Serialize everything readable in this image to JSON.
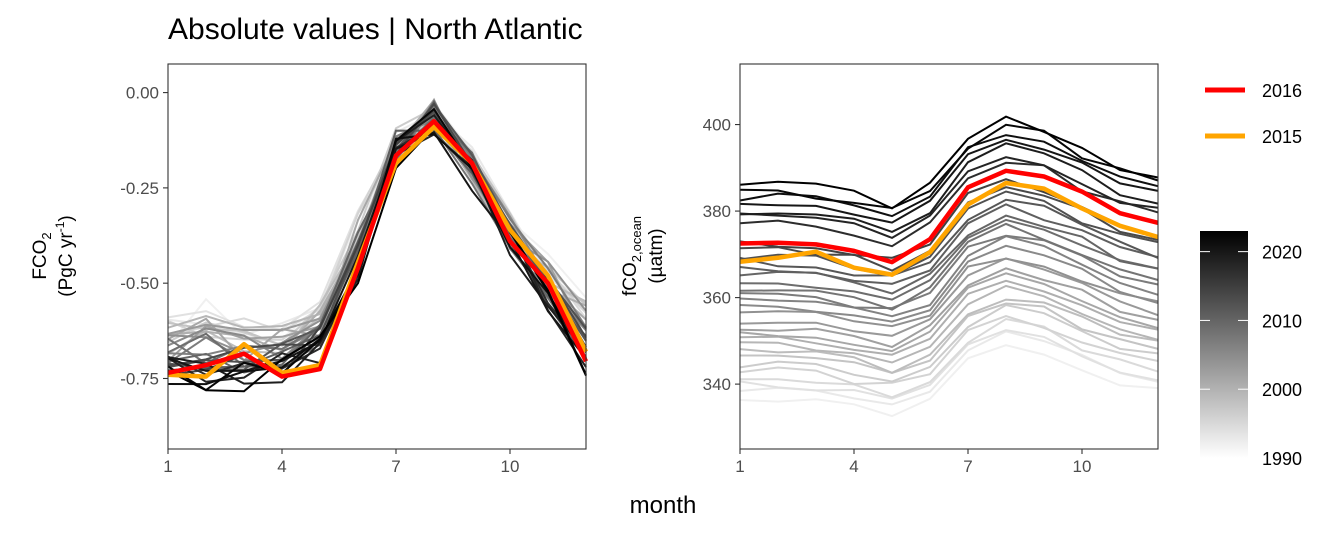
{
  "title": "Absolute values | North Atlantic",
  "xlabel": "month",
  "colors": {
    "highlight_2016": "#ff0000",
    "highlight_2015": "#ffa500",
    "years_dark": "#000000",
    "years_light": "#f0f0f0"
  },
  "legend": {
    "items": [
      {
        "label": "2016",
        "color": "#ff0000"
      },
      {
        "label": "2015",
        "color": "#ffa500"
      }
    ],
    "colorbar": {
      "min": 1990,
      "max": 2023,
      "ticks": [
        "2020",
        "2010",
        "2000",
        "1990"
      ]
    }
  },
  "chart_data": [
    {
      "type": "line",
      "ylabel_main": "FCO",
      "ylabel_sub": "2",
      "ylabel_line2": "(PgC yr",
      "ylabel_line2_sup": "-1",
      "ylabel_line2_end": ")",
      "x": [
        1,
        2,
        3,
        4,
        5,
        6,
        7,
        8,
        9,
        10,
        11,
        12
      ],
      "xticks": [
        "1",
        "4",
        "7",
        "10"
      ],
      "xlim": [
        1,
        12
      ],
      "ylim": [
        -0.935,
        0.075
      ],
      "yticks": [
        "0.00",
        "-0.25",
        "-0.50",
        "-0.75"
      ],
      "year_range": [
        1990,
        2023
      ],
      "highlights": [
        {
          "name": "2016",
          "color": "#ff0000",
          "values": [
            -0.735,
            -0.715,
            -0.685,
            -0.745,
            -0.725,
            -0.46,
            -0.165,
            -0.075,
            -0.185,
            -0.39,
            -0.5,
            -0.705
          ]
        },
        {
          "name": "2015",
          "color": "#ffa500",
          "values": [
            -0.74,
            -0.745,
            -0.66,
            -0.735,
            -0.715,
            -0.445,
            -0.185,
            -0.09,
            -0.185,
            -0.36,
            -0.48,
            -0.68
          ]
        }
      ]
    },
    {
      "type": "line",
      "ylabel_main": "fCO",
      "ylabel_sub": "2,ocean",
      "ylabel_line2": "(µatm)",
      "x": [
        1,
        2,
        3,
        4,
        5,
        6,
        7,
        8,
        9,
        10,
        11,
        12
      ],
      "xticks": [
        "1",
        "4",
        "7",
        "10"
      ],
      "xlim": [
        1,
        12
      ],
      "ylim": [
        325,
        414
      ],
      "yticks": [
        "400",
        "380",
        "360",
        "340"
      ],
      "year_range": [
        1990,
        2023
      ],
      "highlights": [
        {
          "name": "2016",
          "color": "#ff0000",
          "values": [
            372.5,
            372.7,
            372.3,
            370.8,
            368.2,
            373.5,
            385.5,
            389.3,
            388.0,
            384.5,
            379.5,
            377.3
          ]
        },
        {
          "name": "2015",
          "color": "#ffa500",
          "values": [
            368.3,
            369.2,
            370.6,
            366.9,
            365.3,
            370.5,
            381.5,
            386.5,
            385.2,
            380.6,
            376.6,
            374.0
          ]
        }
      ]
    }
  ]
}
